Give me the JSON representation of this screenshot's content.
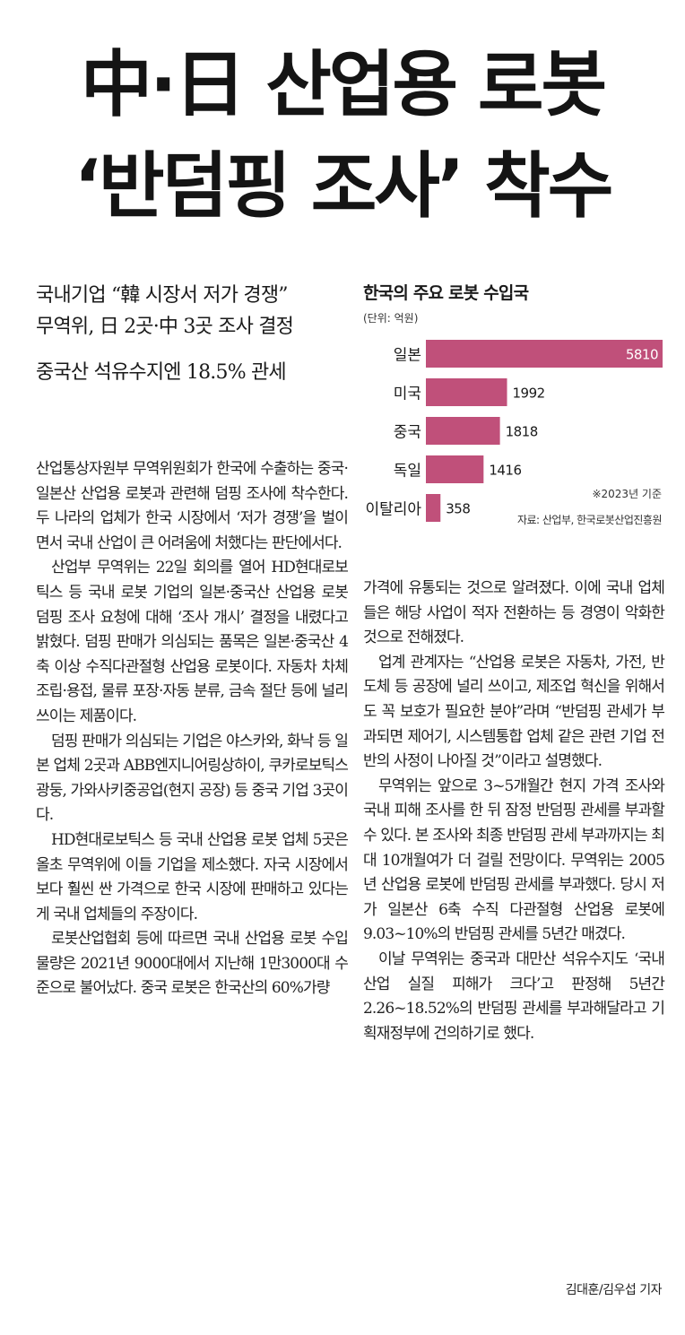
{
  "headline": {
    "line1": "中·日 산업용 로봇",
    "line2": "‘반덤핑 조사’ 착수"
  },
  "subheads": [
    "국내기업 “韓 시장서 저가 경쟁”",
    "무역위, 日 2곳·中 3곳 조사 결정",
    "중국산 석유수지엔 18.5% 관세"
  ],
  "chart_data": {
    "type": "bar",
    "orientation": "horizontal",
    "title": "한국의 주요 로봇 수입국",
    "unit": "(단위: 억원)",
    "categories": [
      "일본",
      "미국",
      "중국",
      "독일",
      "이탈리아"
    ],
    "values": [
      5810,
      1992,
      1818,
      1416,
      358
    ],
    "value_labels": [
      "5810",
      "1992",
      "1818",
      "1416",
      "358"
    ],
    "xlim": [
      0,
      5810
    ],
    "bar_color": "#c0507a",
    "note": "※2023년 기준",
    "source": "자료: 산업부, 한국로봇산업진흥원"
  },
  "body": {
    "col1": [
      "산업통상자원부 무역위원회가 한국에 수출하는 중국·일본산 산업용 로봇과 관련해 덤핑 조사에 착수한다. 두 나라의 업체가 한국 시장에서 ‘저가 경쟁’을 벌이면서 국내 산업이 큰 어려움에 처했다는 판단에서다.",
      "산업부 무역위는 22일 회의를 열어 HD현대로보틱스 등 국내 로봇 기업의 일본·중국산 산업용 로봇 덤핑 조사 요청에 대해 ‘조사 개시’ 결정을 내렸다고 밝혔다. 덤핑 판매가 의심되는 품목은 일본·중국산 4축 이상 수직다관절형 산업용 로봇이다. 자동차 차체 조립·용접, 물류 포장·자동 분류, 금속 절단 등에 널리 쓰이는 제품이다.",
      "덤핑 판매가 의심되는 기업은 야스카와, 화낙 등 일본 업체 2곳과 ABB엔지니어링상하이, 쿠카로보틱스광둥, 가와사키중공업(현지 공장) 등 중국 기업 3곳이다.",
      "HD현대로보틱스 등 국내 산업용 로봇 업체 5곳은 올초 무역위에 이들 기업을 제소했다. 자국 시장에서보다 훨씬 싼 가격으로 한국 시장에 판매하고 있다는 게 국내 업체들의 주장이다.",
      "로봇산업협회 등에 따르면 국내 산업용 로봇 수입 물량은 2021년 9000대에서 지난해 1만3000대 수준으로 불어났다. 중국 로봇은 한국산의 60%가량"
    ],
    "col2": [
      "가격에 유통되는 것으로 알려졌다. 이에 국내 업체들은 해당 사업이 적자 전환하는 등 경영이 악화한 것으로 전해졌다.",
      "업계 관계자는 “산업용 로봇은 자동차, 가전, 반도체 등 공장에 널리 쓰이고, 제조업 혁신을 위해서도 꼭 보호가 필요한 분야”라며 “반덤핑 관세가 부과되면 제어기, 시스템통합 업체 같은 관련 기업 전반의 사정이 나아질 것”이라고 설명했다.",
      "무역위는 앞으로 3~5개월간 현지 가격 조사와 국내 피해 조사를 한 뒤 잠정 반덤핑 관세를 부과할 수 있다. 본 조사와 최종 반덤핑 관세 부과까지는 최대 10개월여가 더 걸릴 전망이다. 무역위는 2005년 산업용 로봇에 반덤핑 관세를 부과했다. 당시 저가 일본산 6축 수직 다관절형 산업용 로봇에 9.03~10%의 반덤핑 관세를 5년간 매겼다.",
      "이날 무역위는 중국과 대만산 석유수지도 ‘국내 산업 실질 피해가 크다’고 판정해 5년간 2.26~18.52%의 반덤핑 관세를 부과해달라고 기획재정부에 건의하기로 했다."
    ]
  },
  "byline": "김대훈/김우섭 기자"
}
